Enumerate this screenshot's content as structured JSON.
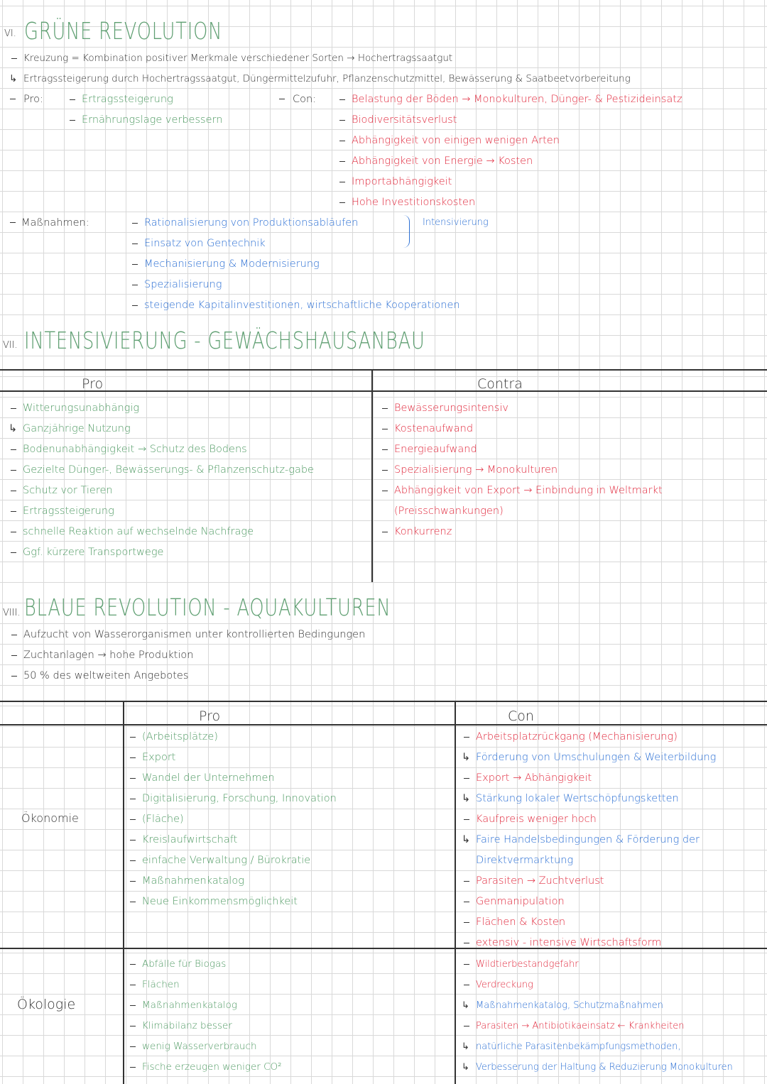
{
  "green_revolution": {
    "numeral": "VI.",
    "title": "GRÜNE REVOLUTION",
    "intro": [
      "Kreuzung = Kombination positiver Merkmale verschiedener Sorten → Hochertragssaatgut",
      {
        "marker": "↳",
        "text": "Ertragssteigerung durch Hochertragssaatgut, Düngermittelzufuhr, Pflanzenschutzmittel, Bewässerung & Saatbeetvorbereitung"
      }
    ],
    "pro": {
      "label": "Pro:",
      "items": [
        "Ertragssteigerung",
        "Ernährungslage verbessern"
      ]
    },
    "con": {
      "label": "Con:",
      "items": [
        "Belastung der Böden → Monokulturen, Dünger- & Pestizideinsatz",
        "Biodiversitätsverlust",
        "Abhängigkeit von einigen wenigen Arten",
        "Abhängigkeit von Energie → Kosten",
        "Importabhängigkeit",
        "Hohe Investitionskosten"
      ]
    },
    "measures": {
      "label": "Maßnahmen:",
      "items": [
        "Rationalisierung von Produktionsabläufen",
        "Einsatz von Gentechnik",
        "Mechanisierung & Modernisierung",
        "Spezialisierung",
        "steigende Kapitalinvestitionen, wirtschaftliche Kooperationen"
      ],
      "bracket_label": "Intensivierung"
    }
  },
  "greenhouse": {
    "numeral": "VII.",
    "title": "INTENSIVIERUNG - GEWÄCHSHAUSANBAU",
    "headers": [
      "Pro",
      "Contra"
    ],
    "pro": [
      "Witterungsunabhängig",
      {
        "marker": "↳",
        "text": "Ganzjährige Nutzung"
      },
      "Bodenunabhängigkeit → Schutz des Bodens",
      "Gezielte Dünger-, Bewässerungs- & Pflanzenschutz-gabe",
      "Schutz vor Tieren",
      "Ertragssteigerung",
      "schnelle Reaktion auf wechselnde Nachfrage",
      "Ggf. kürzere Transportwege"
    ],
    "contra": [
      "Bewässerungsintensiv",
      "Kostenaufwand",
      "Energieaufwand",
      "Spezialisierung → Monokulturen",
      "Abhängigkeit von Export → Einbindung in Weltmarkt (Preisschwankungen)",
      "Konkurrenz"
    ]
  },
  "blue_revolution": {
    "numeral": "VIII.",
    "title": "BLAUE REVOLUTION - AQUAKULTUREN",
    "intro": [
      "Aufzucht von Wasserorganismen unter kontrollierten Bedingungen",
      "Zuchtanlagen → hohe Produktion",
      "50 % des weltweiten Angebotes"
    ],
    "headers": [
      "Pro",
      "Con"
    ],
    "rows": [
      {
        "label": "Ökonomie",
        "pro": [
          "(Arbeitsplätze)",
          "Export",
          "Wandel der Unternehmen",
          "Digitalisierung, Forschung, Innovation",
          "(Fläche)",
          "Kreislaufwirtschaft",
          "einfache Verwaltung / Bürokratie",
          "Maßnahmenkatalog",
          "Neue Einkommensmöglichkeit"
        ],
        "con": [
          "Arbeitsplatzrückgang (Mechanisierung)",
          {
            "marker": "↳",
            "text": "Förderung von Umschulungen & Weiterbildung"
          },
          "Export → Abhängigkeit",
          {
            "marker": "↳",
            "text": "Stärkung lokaler Wertschöpfungsketten"
          },
          "Kaufpreis weniger hoch",
          {
            "marker": "↳",
            "text": "Faire Handelsbedingungen & Förderung der Direktvermarktung"
          },
          "Parasiten → Zuchtverlust",
          "Genmanipulation",
          "Flächen & Kosten",
          "extensiv - intensive Wirtschaftsform"
        ]
      },
      {
        "label": "Ökologie",
        "pro": [
          "Abfälle für Biogas",
          "Flächen",
          "Maßnahmenkatalog",
          "Klimabilanz besser",
          "wenig Wasserverbrauch",
          "Fische erzeugen weniger CO²"
        ],
        "con": [
          "Wildtierbestandgefahr",
          "Verdreckung",
          {
            "marker": "↳",
            "text": "Maßnahmenkatalog, Schutzmaßnahmen"
          },
          "Parasiten → Antibiotikaeinsatz ← Krankheiten",
          {
            "marker": "↳",
            "text": "natürliche Parasitenbekämpfungsmethoden,"
          },
          {
            "marker": "↳",
            "text": "Verbesserung der Haltung & Reduzierung Monokulturen"
          }
        ]
      }
    ]
  }
}
